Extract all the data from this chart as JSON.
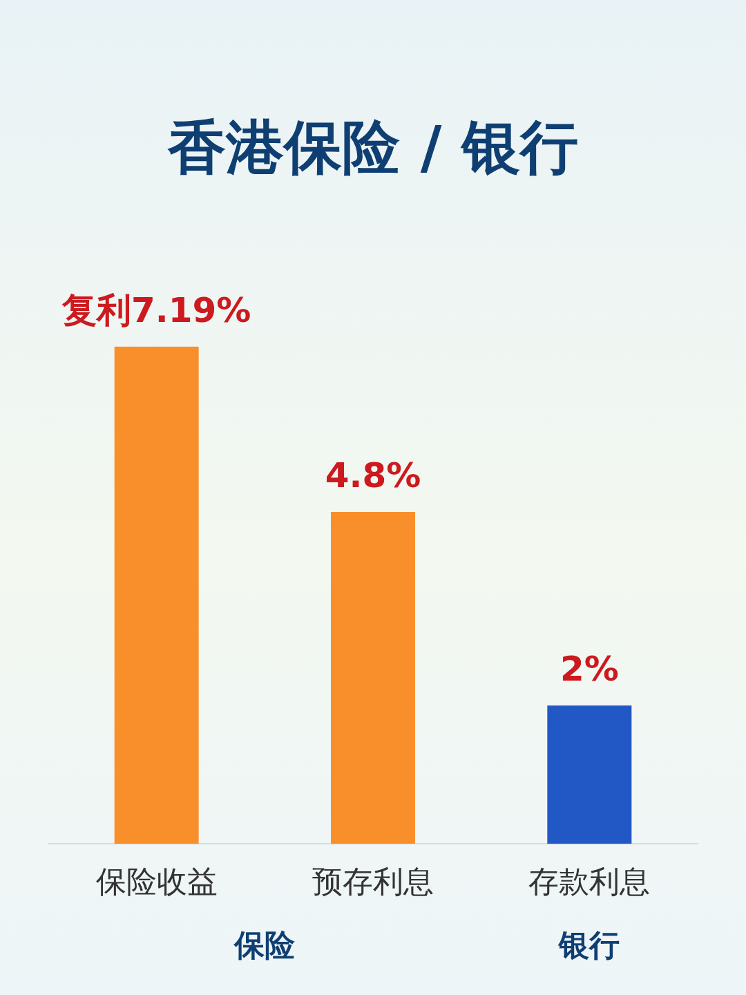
{
  "chart_data": {
    "type": "bar",
    "title": "香港保险 / 银行",
    "categories": [
      "保险收益",
      "预存利息",
      "存款利息"
    ],
    "values": [
      7.19,
      4.8,
      2
    ],
    "colors": [
      "#f98f2b",
      "#f98f2b",
      "#2258c6"
    ],
    "value_labels": [
      "复利7.19%",
      "4.8%",
      "2%"
    ],
    "annotations": [
      "保险",
      "银行"
    ]
  }
}
